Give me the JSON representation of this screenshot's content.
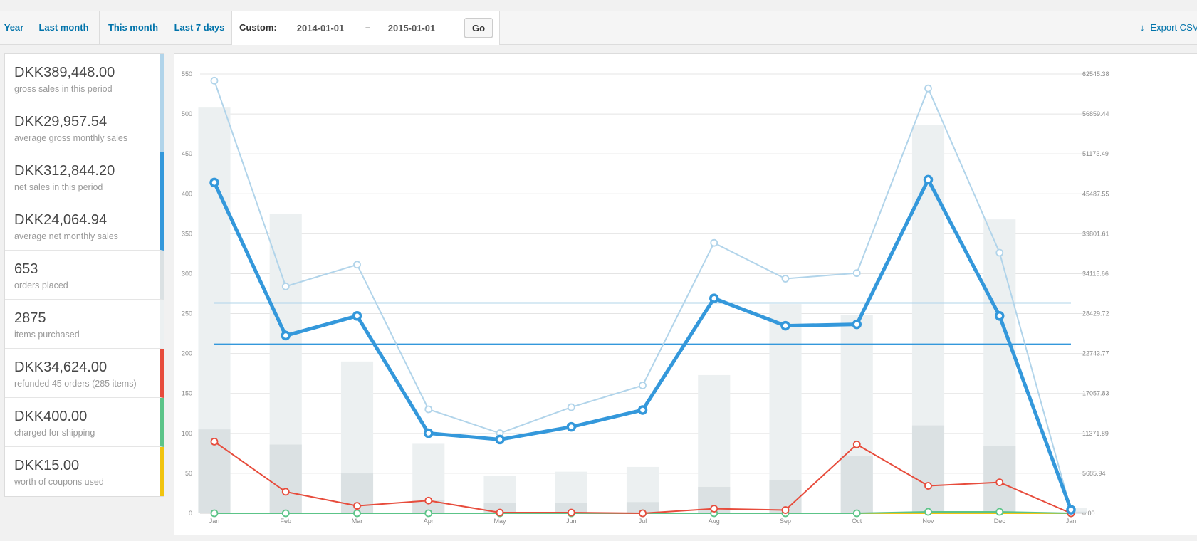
{
  "range_tabs": [
    "Year",
    "Last month",
    "This month",
    "Last 7 days"
  ],
  "custom": {
    "label": "Custom:",
    "start": "2014-01-01",
    "separator": "–",
    "end": "2015-01-01",
    "go_label": "Go"
  },
  "export_label": "Export CSV",
  "legend": [
    {
      "amount": "DKK389,448.00",
      "desc": "gross sales in this period",
      "color": "#b1d4ea"
    },
    {
      "amount": "DKK29,957.54",
      "desc": "average gross monthly sales",
      "color": "#b1d4ea"
    },
    {
      "amount": "DKK312,844.20",
      "desc": "net sales in this period",
      "color": "#3498db"
    },
    {
      "amount": "DKK24,064.94",
      "desc": "average net monthly sales",
      "color": "#3498db"
    },
    {
      "amount": "653",
      "desc": "orders placed",
      "color": "#dbe1e3"
    },
    {
      "amount": "2875",
      "desc": "items purchased",
      "color": "#ecf0f1"
    },
    {
      "amount": "DKK34,624.00",
      "desc": "refunded 45 orders (285 items)",
      "color": "#e74c3c"
    },
    {
      "amount": "DKK400.00",
      "desc": "charged for shipping",
      "color": "#5cc488"
    },
    {
      "amount": "DKK15.00",
      "desc": "worth of coupons used",
      "color": "#f1c40f"
    }
  ],
  "chart_data": {
    "type": "bar",
    "categories": [
      "Jan",
      "Feb",
      "Mar",
      "Apr",
      "May",
      "Jun",
      "Jul",
      "Aug",
      "Sep",
      "Oct",
      "Nov",
      "Dec",
      "Jan"
    ],
    "ylim_left": [
      0,
      550
    ],
    "y_ticks_left": [
      "0",
      "50",
      "100",
      "150",
      "200",
      "250",
      "300",
      "350",
      "400",
      "450",
      "500",
      "550"
    ],
    "ylim_right": [
      0,
      62545.38
    ],
    "y_ticks_right": [
      "0.00",
      "5685.94",
      "11371.89",
      "17057.83",
      "22743.77",
      "28429.72",
      "34115.66",
      "39801.61",
      "45487.55",
      "51173.49",
      "56859.44",
      "62545.38"
    ],
    "grid": true,
    "bars": [
      {
        "axis": "left",
        "values": [
          508,
          375,
          190,
          87,
          47,
          52,
          58,
          173,
          262,
          248,
          486,
          368,
          7
        ],
        "color": "#ecf0f1"
      },
      {
        "axis": "left",
        "values": [
          105,
          86,
          50,
          16,
          13,
          13,
          14,
          33,
          41,
          72,
          110,
          84,
          2
        ],
        "color": "#dbe1e3"
      }
    ],
    "series": [
      {
        "axis": "right",
        "values": [
          61600,
          32300,
          35400,
          14800,
          11400,
          15100,
          18200,
          38500,
          33400,
          34200,
          60500,
          37100,
          400
        ],
        "color": "#b1d4ea",
        "width": 2
      },
      {
        "axis": "right",
        "values": [
          47100,
          25300,
          28100,
          11400,
          10500,
          12300,
          14700,
          30600,
          26700,
          26900,
          47500,
          28100,
          500
        ],
        "color": "#3498db",
        "width": 5
      },
      {
        "axis": "right",
        "values": [
          10200,
          3050,
          1050,
          1800,
          100,
          100,
          0,
          650,
          450,
          9800,
          3900,
          4400,
          0
        ],
        "color": "#e74c3c",
        "width": 2
      },
      {
        "axis": "right",
        "values": [
          0,
          0,
          0,
          0,
          0,
          0,
          0,
          0,
          0,
          0,
          200,
          200,
          0
        ],
        "color": "#5cc488",
        "width": 2
      },
      {
        "axis": "right",
        "values": [
          0,
          0,
          0,
          0,
          0,
          0,
          0,
          0,
          0,
          0,
          0,
          0,
          0
        ],
        "color": "#f1c40f",
        "width": 2
      }
    ],
    "averages": [
      {
        "axis": "right",
        "value": 29957.54,
        "color": "#b1d4ea"
      },
      {
        "axis": "right",
        "value": 24064.94,
        "color": "#3498db"
      }
    ]
  }
}
